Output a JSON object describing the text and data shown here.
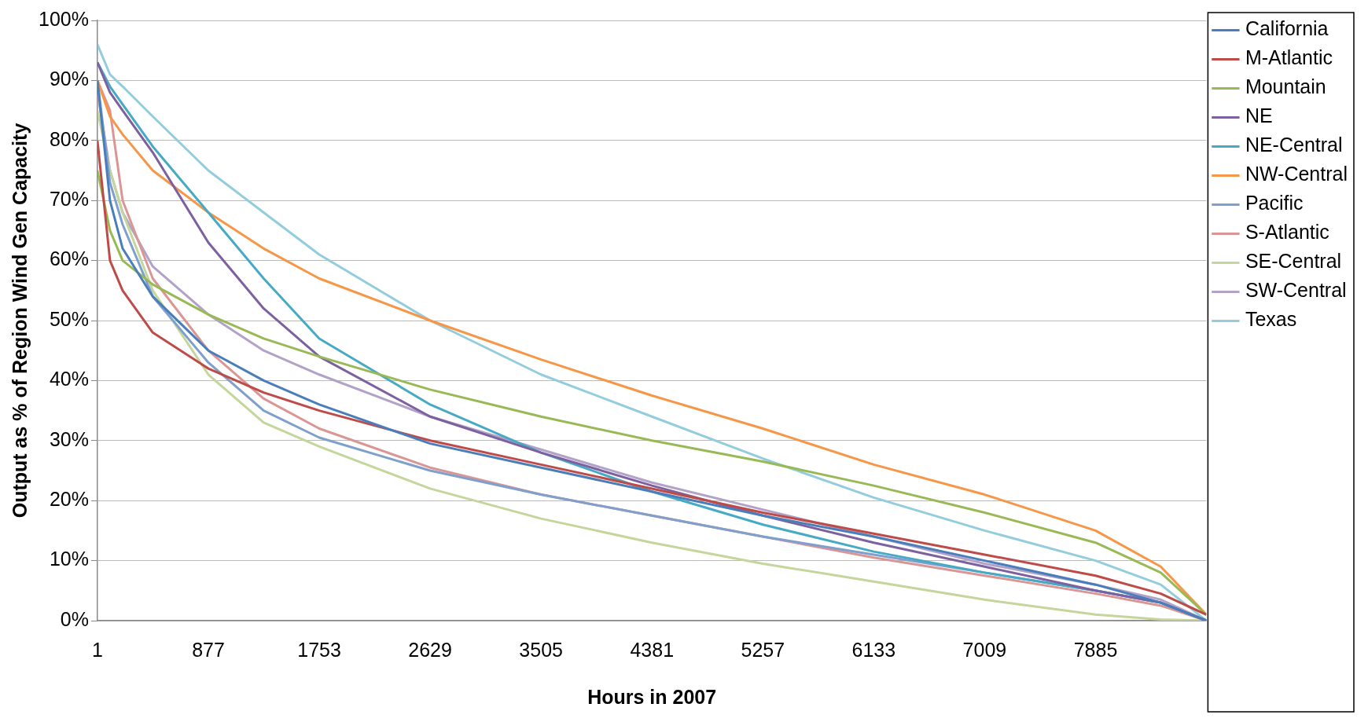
{
  "chart_data": {
    "type": "line",
    "xlabel": "Hours in 2007",
    "ylabel": "Output as % of Region Wind Gen Capacity",
    "x": [
      1,
      100,
      200,
      438,
      877,
      1314,
      1753,
      2629,
      3505,
      4381,
      5257,
      6133,
      7009,
      7885,
      8400,
      8760
    ],
    "xlim": [
      1,
      8760
    ],
    "xticks": [
      1,
      877,
      1753,
      2629,
      3505,
      4381,
      5257,
      6133,
      7009,
      7885
    ],
    "ylim": [
      0,
      100
    ],
    "yticks": [
      {
        "value": 0,
        "label": "0%"
      },
      {
        "value": 10,
        "label": "10%"
      },
      {
        "value": 20,
        "label": "20%"
      },
      {
        "value": 30,
        "label": "30%"
      },
      {
        "value": 40,
        "label": "40%"
      },
      {
        "value": 50,
        "label": "50%"
      },
      {
        "value": 60,
        "label": "60%"
      },
      {
        "value": 70,
        "label": "70%"
      },
      {
        "value": 80,
        "label": "80%"
      },
      {
        "value": 90,
        "label": "90%"
      },
      {
        "value": 100,
        "label": "100%"
      }
    ],
    "grid": "y",
    "legend": "top right",
    "marker": "none",
    "line_style": "solid",
    "series": [
      {
        "name": "California",
        "color": "#4a7ebb",
        "values": [
          90,
          70,
          62,
          54,
          45,
          40,
          36,
          29.5,
          25.5,
          21.5,
          17.5,
          14,
          10,
          6,
          3,
          0
        ]
      },
      {
        "name": "M-Atlantic",
        "color": "#be4b48",
        "values": [
          80,
          60,
          55,
          48,
          42,
          38,
          35,
          30,
          26,
          22,
          18,
          14.5,
          11,
          7.5,
          4.5,
          1
        ]
      },
      {
        "name": "Mountain",
        "color": "#98b954",
        "values": [
          75,
          65,
          60,
          56,
          51,
          47,
          44,
          38.5,
          34,
          30,
          26.5,
          22.5,
          18,
          13,
          8,
          1
        ]
      },
      {
        "name": "NE",
        "color": "#7d60a0",
        "values": [
          93,
          88,
          85,
          78,
          63,
          52,
          44,
          34,
          28,
          22.5,
          17.5,
          13,
          9,
          5,
          3,
          0
        ]
      },
      {
        "name": "NE-Central",
        "color": "#46aac5",
        "values": [
          93,
          89,
          86,
          79,
          68,
          57,
          47,
          36,
          28,
          21.5,
          16,
          11.5,
          8,
          5,
          3,
          0
        ]
      },
      {
        "name": "NW-Central",
        "color": "#f79646",
        "values": [
          90,
          84,
          81,
          75,
          68,
          62,
          57,
          50,
          43.5,
          37.5,
          32,
          26,
          21,
          15,
          9,
          1
        ]
      },
      {
        "name": "Pacific",
        "color": "#7f9fcc",
        "values": [
          90,
          73,
          66,
          54,
          43,
          35,
          30.5,
          25,
          21,
          17.5,
          14,
          11,
          8,
          5,
          3,
          0
        ]
      },
      {
        "name": "S-Atlantic",
        "color": "#d99694",
        "values": [
          90,
          85,
          70,
          57,
          45,
          37,
          32,
          25.5,
          21,
          17.5,
          14,
          10.5,
          7.5,
          4.5,
          2.5,
          0
        ]
      },
      {
        "name": "SE-Central",
        "color": "#c3d69b",
        "values": [
          85,
          75,
          68,
          55,
          41,
          33,
          29,
          22,
          17,
          13,
          9.5,
          6.5,
          3.5,
          1,
          0.2,
          0
        ]
      },
      {
        "name": "SW-Central",
        "color": "#b3a2c7",
        "values": [
          88,
          75,
          68,
          59,
          51,
          45,
          41,
          34,
          28.5,
          23,
          18.5,
          14,
          9.5,
          6,
          3.5,
          0
        ]
      },
      {
        "name": "Texas",
        "color": "#93cddd",
        "values": [
          96,
          91,
          89,
          84,
          75,
          68,
          61,
          50,
          41,
          34,
          27,
          20.5,
          15,
          10,
          6,
          0
        ]
      }
    ]
  }
}
